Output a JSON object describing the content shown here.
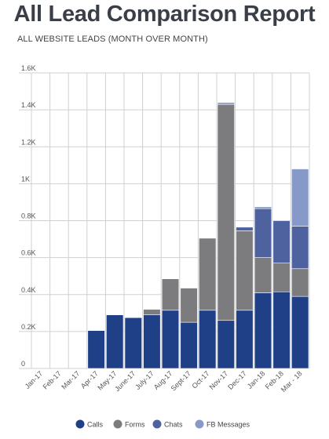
{
  "chart_data": {
    "type": "bar",
    "stacked": true,
    "title": "All Lead Comparison Report",
    "subtitle": "ALL WEBSITE LEADS (MONTH OVER MONTH)",
    "categories": [
      "Jan-17",
      "Feb-17",
      "Mar-17",
      "Apr-17",
      "May-17",
      "June-17",
      "July-17",
      "Aug-17",
      "Sept-17",
      "Oct-17",
      "Nov-17",
      "Dec-17",
      "Jan-18",
      "Feb-18",
      "Mar - 18"
    ],
    "ylim": [
      0,
      1600
    ],
    "yticks": [
      0,
      200,
      400,
      600,
      800,
      1000,
      1200,
      1400,
      1600
    ],
    "ytick_labels": [
      "0",
      "0.2K",
      "0.4K",
      "0.6K",
      "0.8K",
      "1K",
      "1.2K",
      "1.4K",
      "1.6K"
    ],
    "grid": true,
    "legend_position": "bottom",
    "series": [
      {
        "name": "Calls",
        "color": "#1f3f87",
        "values": [
          0,
          0,
          0,
          205,
          290,
          275,
          290,
          315,
          250,
          315,
          260,
          315,
          410,
          415,
          390
        ]
      },
      {
        "name": "Forms",
        "color": "#7c7c7e",
        "values": [
          0,
          0,
          0,
          0,
          0,
          0,
          30,
          170,
          185,
          390,
          1170,
          430,
          190,
          155,
          150
        ]
      },
      {
        "name": "Chats",
        "color": "#4f62a0",
        "values": [
          0,
          0,
          0,
          0,
          0,
          0,
          0,
          0,
          0,
          0,
          0,
          20,
          265,
          230,
          230
        ]
      },
      {
        "name": "FB Messages",
        "color": "#8699c8",
        "values": [
          0,
          0,
          0,
          0,
          0,
          0,
          0,
          0,
          0,
          0,
          10,
          0,
          10,
          0,
          310
        ]
      }
    ]
  }
}
